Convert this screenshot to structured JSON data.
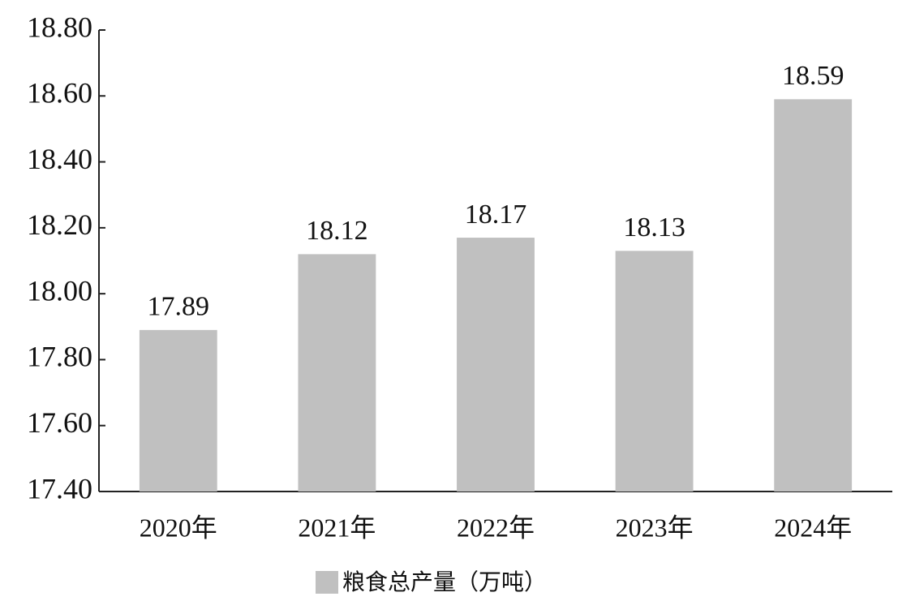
{
  "chart_data": {
    "type": "bar",
    "categories": [
      "2020年",
      "2021年",
      "2022年",
      "2023年",
      "2024年"
    ],
    "series": [
      {
        "name": "粮食总产量（万吨）",
        "color": "#c0c0c0",
        "values": [
          17.89,
          18.12,
          18.17,
          18.13,
          18.59
        ]
      }
    ],
    "ylim": [
      17.4,
      18.8
    ],
    "yticks": [
      {
        "value": 17.4,
        "label": "17.40"
      },
      {
        "value": 17.6,
        "label": "17.60"
      },
      {
        "value": 17.8,
        "label": "17.80"
      },
      {
        "value": 18.0,
        "label": "18.00"
      },
      {
        "value": 18.2,
        "label": "18.20"
      },
      {
        "value": 18.4,
        "label": "18.40"
      },
      {
        "value": 18.6,
        "label": "18.60"
      },
      {
        "value": 18.8,
        "label": "18.80"
      }
    ],
    "grid": false
  }
}
